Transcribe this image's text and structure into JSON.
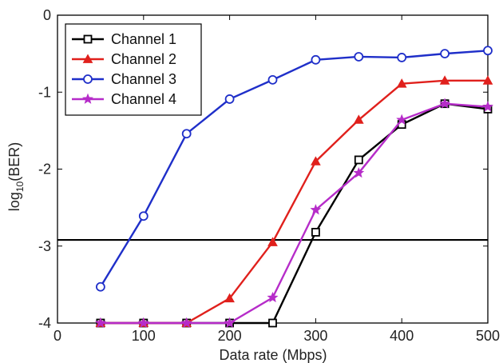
{
  "chart_data": {
    "type": "line",
    "xlabel": "Data rate (Mbps)",
    "ylabel_main": "log",
    "ylabel_sub": "10",
    "ylabel_tail": "(BER)",
    "xlim": [
      0,
      500
    ],
    "ylim": [
      -4,
      0
    ],
    "xticks": [
      0,
      100,
      200,
      300,
      400,
      500
    ],
    "yticks": [
      0,
      -1,
      -2,
      -3,
      -4
    ],
    "grid": false,
    "legend_position": "top-left",
    "threshold": -2.92,
    "threshold_color": "#000000",
    "series": [
      {
        "name": "Channel 1",
        "color": "#000000",
        "marker": "square",
        "x": [
          50,
          100,
          150,
          200,
          250,
          300,
          350,
          400,
          450,
          500
        ],
        "y": [
          -4,
          -4,
          -4,
          -4,
          -4,
          -2.82,
          -1.88,
          -1.42,
          -1.15,
          -1.22
        ]
      },
      {
        "name": "Channel 2",
        "color": "#e0201c",
        "marker": "triangle",
        "x": [
          50,
          100,
          150,
          200,
          250,
          300,
          350,
          400,
          450,
          500
        ],
        "y": [
          -4,
          -4,
          -4,
          -3.68,
          -2.95,
          -1.9,
          -1.36,
          -0.89,
          -0.85,
          -0.85
        ]
      },
      {
        "name": "Channel 3",
        "color": "#1f2fc9",
        "marker": "circle",
        "x": [
          50,
          100,
          150,
          200,
          250,
          300,
          350,
          400,
          450,
          500
        ],
        "y": [
          -3.53,
          -2.61,
          -1.54,
          -1.09,
          -0.84,
          -0.58,
          -0.54,
          -0.55,
          -0.5,
          -0.46
        ]
      },
      {
        "name": "Channel 4",
        "color": "#b62cc9",
        "marker": "star",
        "x": [
          50,
          100,
          150,
          200,
          250,
          300,
          350,
          400,
          450,
          500
        ],
        "y": [
          -4,
          -4,
          -4,
          -4,
          -3.67,
          -2.53,
          -2.05,
          -1.36,
          -1.15,
          -1.19
        ]
      }
    ]
  }
}
